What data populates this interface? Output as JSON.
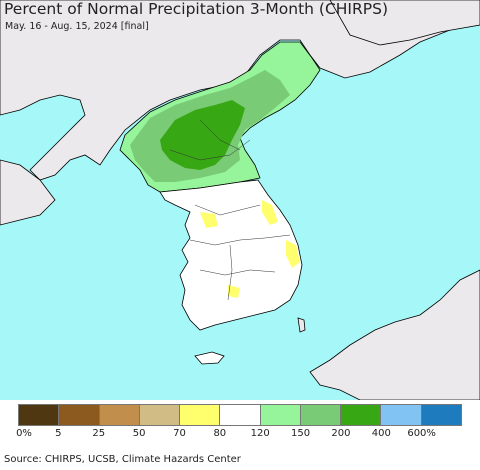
{
  "title": "Percent of Normal Precipitation 3-Month (CHIRPS)",
  "subtitle": "May. 16 - Aug. 15, 2024 [final]",
  "source": "Source: CHIRPS, UCSB, Climate Hazards Center",
  "colors": {
    "sea": "#a6f7f7",
    "foreign_land": "#ece9ed",
    "border": "#000000"
  },
  "legend": {
    "colors": [
      "#4e3711",
      "#8c5a1e",
      "#c18e4b",
      "#d0bc84",
      "#ffff6d",
      "#ffffff",
      "#96f49a",
      "#79cb76",
      "#37a714",
      "#81c4f4",
      "#1e7bbe"
    ],
    "labels": [
      "0%",
      "5",
      "25",
      "50",
      "70",
      "80",
      "120",
      "150",
      "200",
      "400",
      "600%"
    ]
  }
}
